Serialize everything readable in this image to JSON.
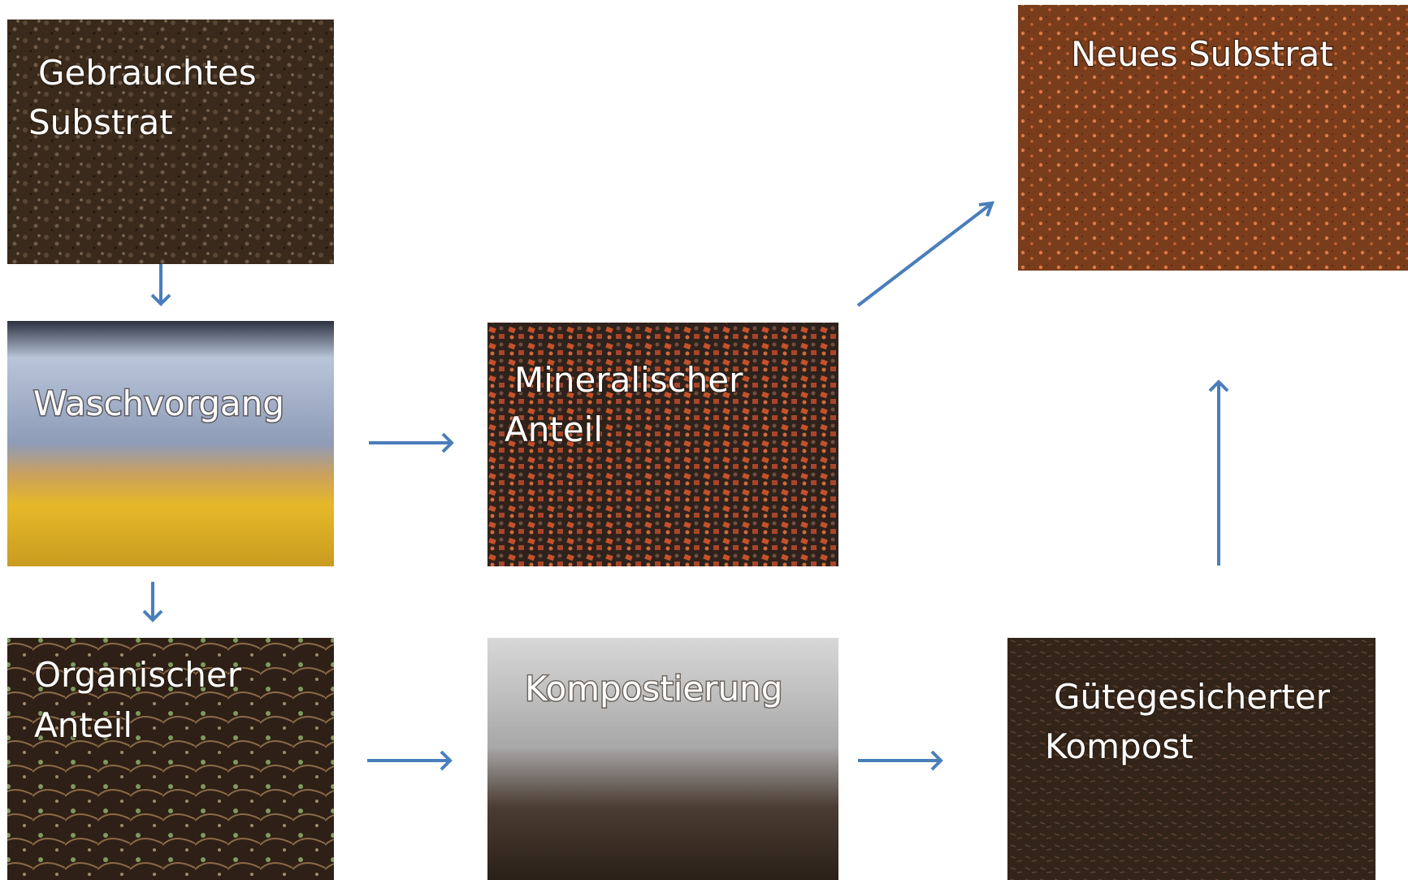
{
  "nodes": [
    {
      "lines": [
        "Gebrauchtes",
        "Substrat"
      ]
    },
    {
      "lines": [
        "Waschvorgang"
      ]
    },
    {
      "lines": [
        "Organischer",
        "Anteil"
      ]
    },
    {
      "lines": [
        "Mineralischer",
        "Anteil"
      ]
    },
    {
      "lines": [
        "Kompostierung"
      ]
    },
    {
      "lines": [
        "Neues Substrat"
      ]
    },
    {
      "lines": [
        "Gütegesicherter",
        "Kompost"
      ]
    }
  ]
}
